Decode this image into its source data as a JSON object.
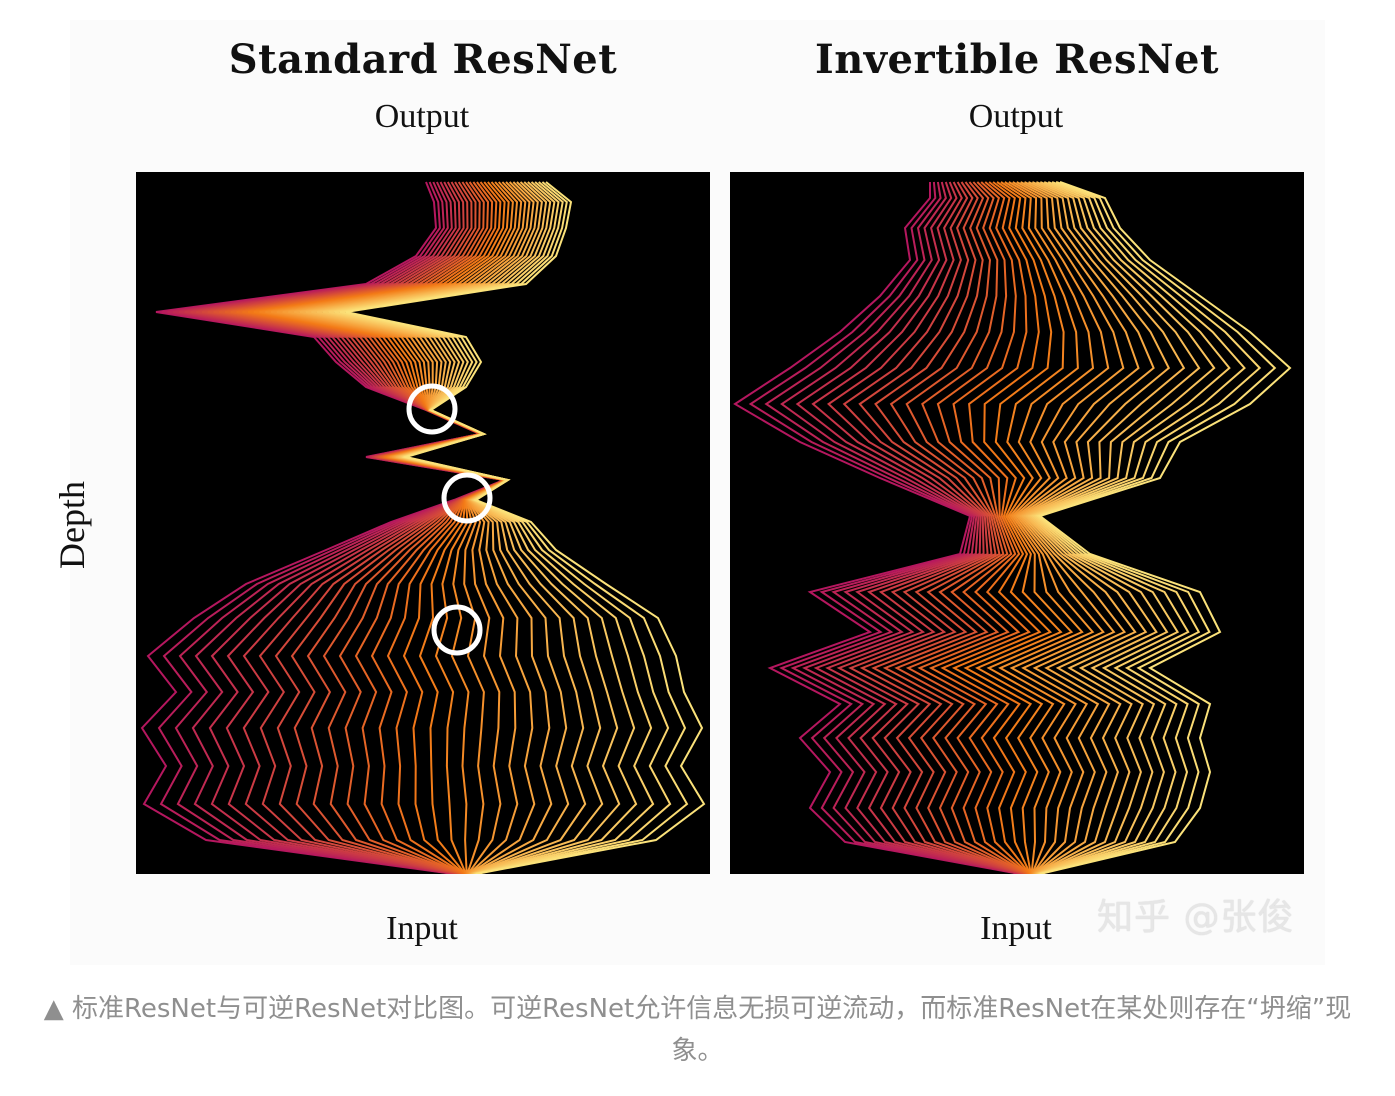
{
  "left_panel": {
    "title": "Standard ResNet",
    "top_label": "Output",
    "bottom_label": "Input"
  },
  "right_panel": {
    "title": "Invertible ResNet",
    "top_label": "Output",
    "bottom_label": "Input"
  },
  "y_axis_label": "Depth",
  "watermark": "知乎 @张俊",
  "caption": "▲ 标准ResNet与可逆ResNet对比图。可逆ResNet允许信息无损可逆流动，而标准ResNet在某处则存在“坍缩”现象。",
  "colors": {
    "panel_background": "#000000",
    "trajectory_start": "#b5175f",
    "trajectory_mid": "#f37a16",
    "trajectory_end": "#fbe27a",
    "collapse_marker": "#ffffff"
  }
}
